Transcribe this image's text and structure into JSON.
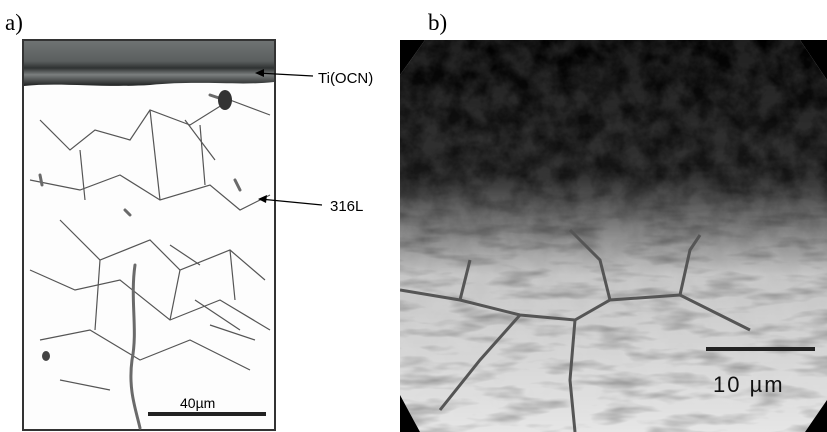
{
  "panels": [
    {
      "label": "a)",
      "annotations": [
        "Ti(OCN)",
        "316L"
      ],
      "scale_bar": "40µm"
    },
    {
      "label": "b)",
      "scale_bar": "10 µm"
    }
  ]
}
